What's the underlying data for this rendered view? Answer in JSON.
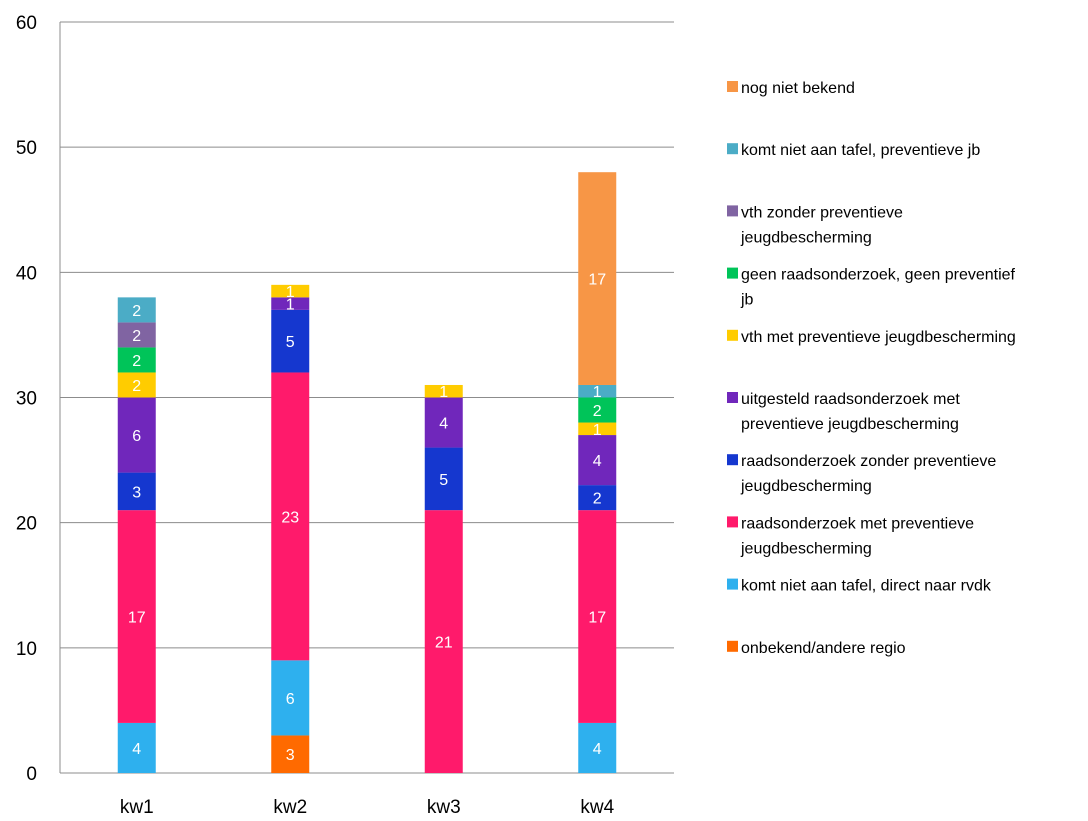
{
  "chart_data": {
    "type": "bar",
    "stacked": true,
    "categories": [
      "kw1",
      "kw2",
      "kw3",
      "kw4"
    ],
    "ylim": [
      0,
      60
    ],
    "yticks": [
      0,
      10,
      20,
      30,
      40,
      50,
      60
    ],
    "grid": true,
    "legend_position": "right",
    "series": [
      {
        "name": "onbekend/andere regio",
        "color": "#FF6A00",
        "values": [
          0,
          3,
          0,
          0
        ]
      },
      {
        "name": "komt niet aan tafel, direct naar rvdk",
        "color": "#2EB0EE",
        "values": [
          4,
          6,
          0,
          4
        ]
      },
      {
        "name": "raadsonderzoek met preventieve jeugdbescherming",
        "color": "#FF1A6B",
        "values": [
          17,
          23,
          21,
          17
        ]
      },
      {
        "name": "raadsonderzoek zonder preventieve jeugdbescherming",
        "color": "#1537CF",
        "values": [
          3,
          5,
          5,
          2
        ]
      },
      {
        "name": "uitgesteld raadsonderzoek met preventieve jeugdbescherming",
        "color": "#7027BB",
        "values": [
          6,
          1,
          4,
          4
        ]
      },
      {
        "name": "vth met preventieve jeugdbescherming",
        "color": "#FFCC00",
        "values": [
          2,
          1,
          1,
          1
        ]
      },
      {
        "name": "geen raadsonderzoek, geen preventief jb",
        "color": "#00C459",
        "values": [
          2,
          0,
          0,
          2
        ]
      },
      {
        "name": "vth zonder preventieve jeugdbescherming",
        "color": "#8064A2",
        "values": [
          2,
          0,
          0,
          0
        ]
      },
      {
        "name": "komt niet aan tafel, preventieve jb",
        "color": "#4BACC6",
        "values": [
          2,
          0,
          0,
          1
        ]
      },
      {
        "name": "nog niet bekend",
        "color": "#F79646",
        "values": [
          0,
          0,
          0,
          17
        ]
      }
    ],
    "legend_order": [
      9,
      8,
      7,
      6,
      5,
      4,
      3,
      2,
      1,
      0
    ],
    "legend_lines": [
      [
        "nog niet bekend"
      ],
      [
        "komt niet aan tafel, preventieve jb"
      ],
      [
        "vth zonder preventieve",
        "jeugdbescherming"
      ],
      [
        "geen raadsonderzoek, geen preventief",
        "jb"
      ],
      [
        "vth met preventieve jeugdbescherming"
      ],
      [
        "uitgesteld raadsonderzoek met",
        "preventieve jeugdbescherming"
      ],
      [
        "raadsonderzoek zonder preventieve",
        "jeugdbescherming"
      ],
      [
        "raadsonderzoek met preventieve",
        "jeugdbescherming"
      ],
      [
        "komt niet aan tafel, direct naar rvdk"
      ],
      [
        "onbekend/andere regio"
      ]
    ]
  }
}
